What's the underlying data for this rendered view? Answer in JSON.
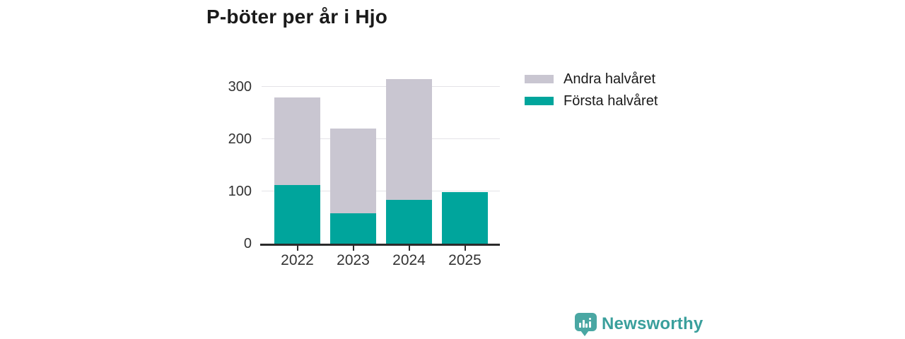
{
  "chart_data": {
    "type": "bar",
    "stacked": true,
    "title": "P-böter per år i Hjo",
    "categories": [
      "2022",
      "2023",
      "2024",
      "2025"
    ],
    "series": [
      {
        "name": "Första halvåret",
        "color": "#00a59c",
        "values": [
          112,
          58,
          84,
          99
        ]
      },
      {
        "name": "Andra halvåret",
        "color": "#c9c6d1",
        "values": [
          168,
          162,
          230,
          0
        ]
      }
    ],
    "totals": [
      280,
      220,
      314,
      99
    ],
    "xlabel": "",
    "ylabel": "",
    "yticks": [
      0,
      100,
      200,
      300
    ],
    "ylim": [
      0,
      330
    ],
    "grid": true,
    "legend_position": "top-right"
  },
  "legend": {
    "items": [
      {
        "label": "Andra halvåret",
        "color": "#c9c6d1"
      },
      {
        "label": "Första halvåret",
        "color": "#00a59c"
      }
    ]
  },
  "branding": {
    "logo_text": "Newsworthy",
    "logo_icon": "bar-chart-speech-bubble-icon",
    "brand_color": "#3a9f9c"
  },
  "colors": {
    "first_half_bar": "#00a59c",
    "second_half_bar": "#c9c6d1",
    "gridline": "#e4e3e7",
    "axis": "#2b2b2b",
    "text": "#333333",
    "title_text": "#1a1a1a",
    "background": "#ffffff"
  }
}
